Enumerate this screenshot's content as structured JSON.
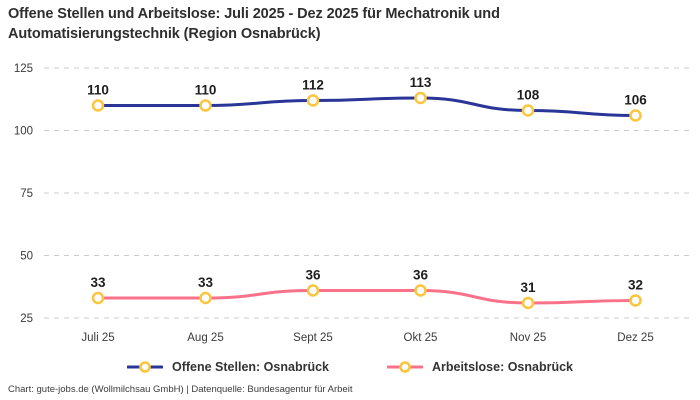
{
  "title": "Offene Stellen und Arbeitslose: Juli 2025 - Dez 2025 für Mechatronik und Automatisierungstechnik (Region Osnabrück)",
  "footer": "Chart: gute-jobs.de (Wollmilchsau GmbH) | Datenquelle: Bundesagentur für Arbeit",
  "colors": {
    "series_offene_stellen": "#2A3697",
    "series_arbeitslose": "#FA7289",
    "marker_stroke": "#FBC53D",
    "marker_fill": "#FFFFFF",
    "gridline": "#CCCCCC",
    "axis_text": "#3a3a3a",
    "data_label_text": "#1f1f1f"
  },
  "chart_data": {
    "type": "line",
    "title": "Offene Stellen und Arbeitslose: Juli 2025 - Dez 2025 für Mechatronik und Automatisierungstechnik (Region Osnabrück)",
    "categories": [
      "Juli 25",
      "Aug 25",
      "Sept 25",
      "Okt 25",
      "Nov 25",
      "Dez 25"
    ],
    "series": [
      {
        "name": "Offene Stellen: Osnabrück",
        "values": [
          110,
          110,
          112,
          113,
          108,
          106
        ],
        "color": "#2A3697"
      },
      {
        "name": "Arbeitslose: Osnabrück",
        "values": [
          33,
          33,
          36,
          36,
          31,
          32
        ],
        "color": "#FA7289"
      }
    ],
    "xlabel": "",
    "ylabel": "",
    "ylim": [
      25,
      125
    ],
    "yticks": [
      25,
      50,
      75,
      100,
      125
    ],
    "grid": "horizontal-dashed",
    "legend_position": "bottom",
    "data_labels": true,
    "marker_shape": "circle-open"
  }
}
